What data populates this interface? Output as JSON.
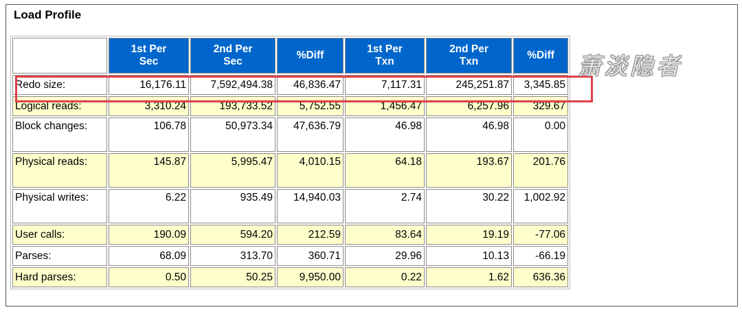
{
  "section_title": "Load Profile",
  "watermark": "萧淡隐者",
  "columns": [
    {
      "line1": "1st Per",
      "line2": "Sec"
    },
    {
      "line1": "2nd Per",
      "line2": "Sec"
    },
    {
      "line1": "%Diff",
      "line2": ""
    },
    {
      "line1": "1st Per",
      "line2": "Txn"
    },
    {
      "line1": "2nd Per",
      "line2": "Txn"
    },
    {
      "line1": "%Diff",
      "line2": ""
    }
  ],
  "rows": [
    {
      "label": "Redo size:",
      "values": [
        "16,176.11",
        "7,592,494.38",
        "46,836.47",
        "7,117.31",
        "245,251.87",
        "3,345.85"
      ],
      "highlighted": true
    },
    {
      "label": "Logical reads:",
      "values": [
        "3,310.24",
        "193,733.52",
        "5,752.55",
        "1,456.47",
        "6,257.96",
        "329.67"
      ]
    },
    {
      "label": "Block changes:",
      "values": [
        "106.78",
        "50,973.34",
        "47,636.79",
        "46.98",
        "46.98",
        "0.00"
      ]
    },
    {
      "label": "Physical reads:",
      "values": [
        "145.87",
        "5,995.47",
        "4,010.15",
        "64.18",
        "193.67",
        "201.76"
      ]
    },
    {
      "label": "Physical writes:",
      "values": [
        "6.22",
        "935.49",
        "14,940.03",
        "2.74",
        "30.22",
        "1,002.92"
      ]
    },
    {
      "label": "User calls:",
      "values": [
        "190.09",
        "594.20",
        "212.59",
        "83.64",
        "19.19",
        "-77.06"
      ]
    },
    {
      "label": "Parses:",
      "values": [
        "68.09",
        "313.70",
        "360.71",
        "29.96",
        "10.13",
        "-66.19"
      ]
    },
    {
      "label": "Hard parses:",
      "values": [
        "0.50",
        "50.25",
        "9,950.00",
        "0.22",
        "1.62",
        "636.36"
      ]
    }
  ],
  "highlight_color": "#e0404a"
}
